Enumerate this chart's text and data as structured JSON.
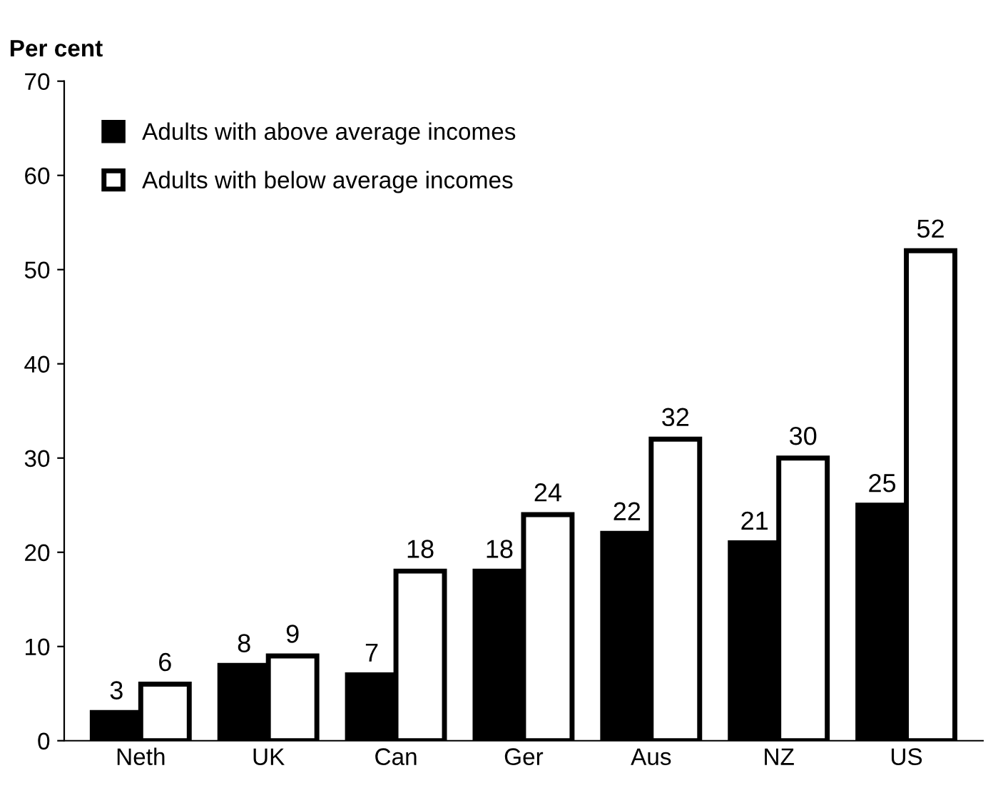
{
  "chart_data": {
    "type": "bar",
    "ylabel": "Per cent",
    "categories": [
      "Neth",
      "UK",
      "Can",
      "Ger",
      "Aus",
      "NZ",
      "US"
    ],
    "series": [
      {
        "name": "Adults with above average incomes",
        "color": "#000000",
        "values": [
          3,
          8,
          7,
          18,
          22,
          21,
          25
        ]
      },
      {
        "name": "Adults with below average incomes",
        "color": "#ffffff",
        "values": [
          6,
          9,
          18,
          24,
          32,
          30,
          52
        ]
      }
    ],
    "ylim": [
      0,
      70
    ],
    "yticks": [
      0,
      10,
      20,
      30,
      40,
      50,
      60,
      70
    ],
    "data_labels": true,
    "legend": "top left",
    "grid": false
  }
}
